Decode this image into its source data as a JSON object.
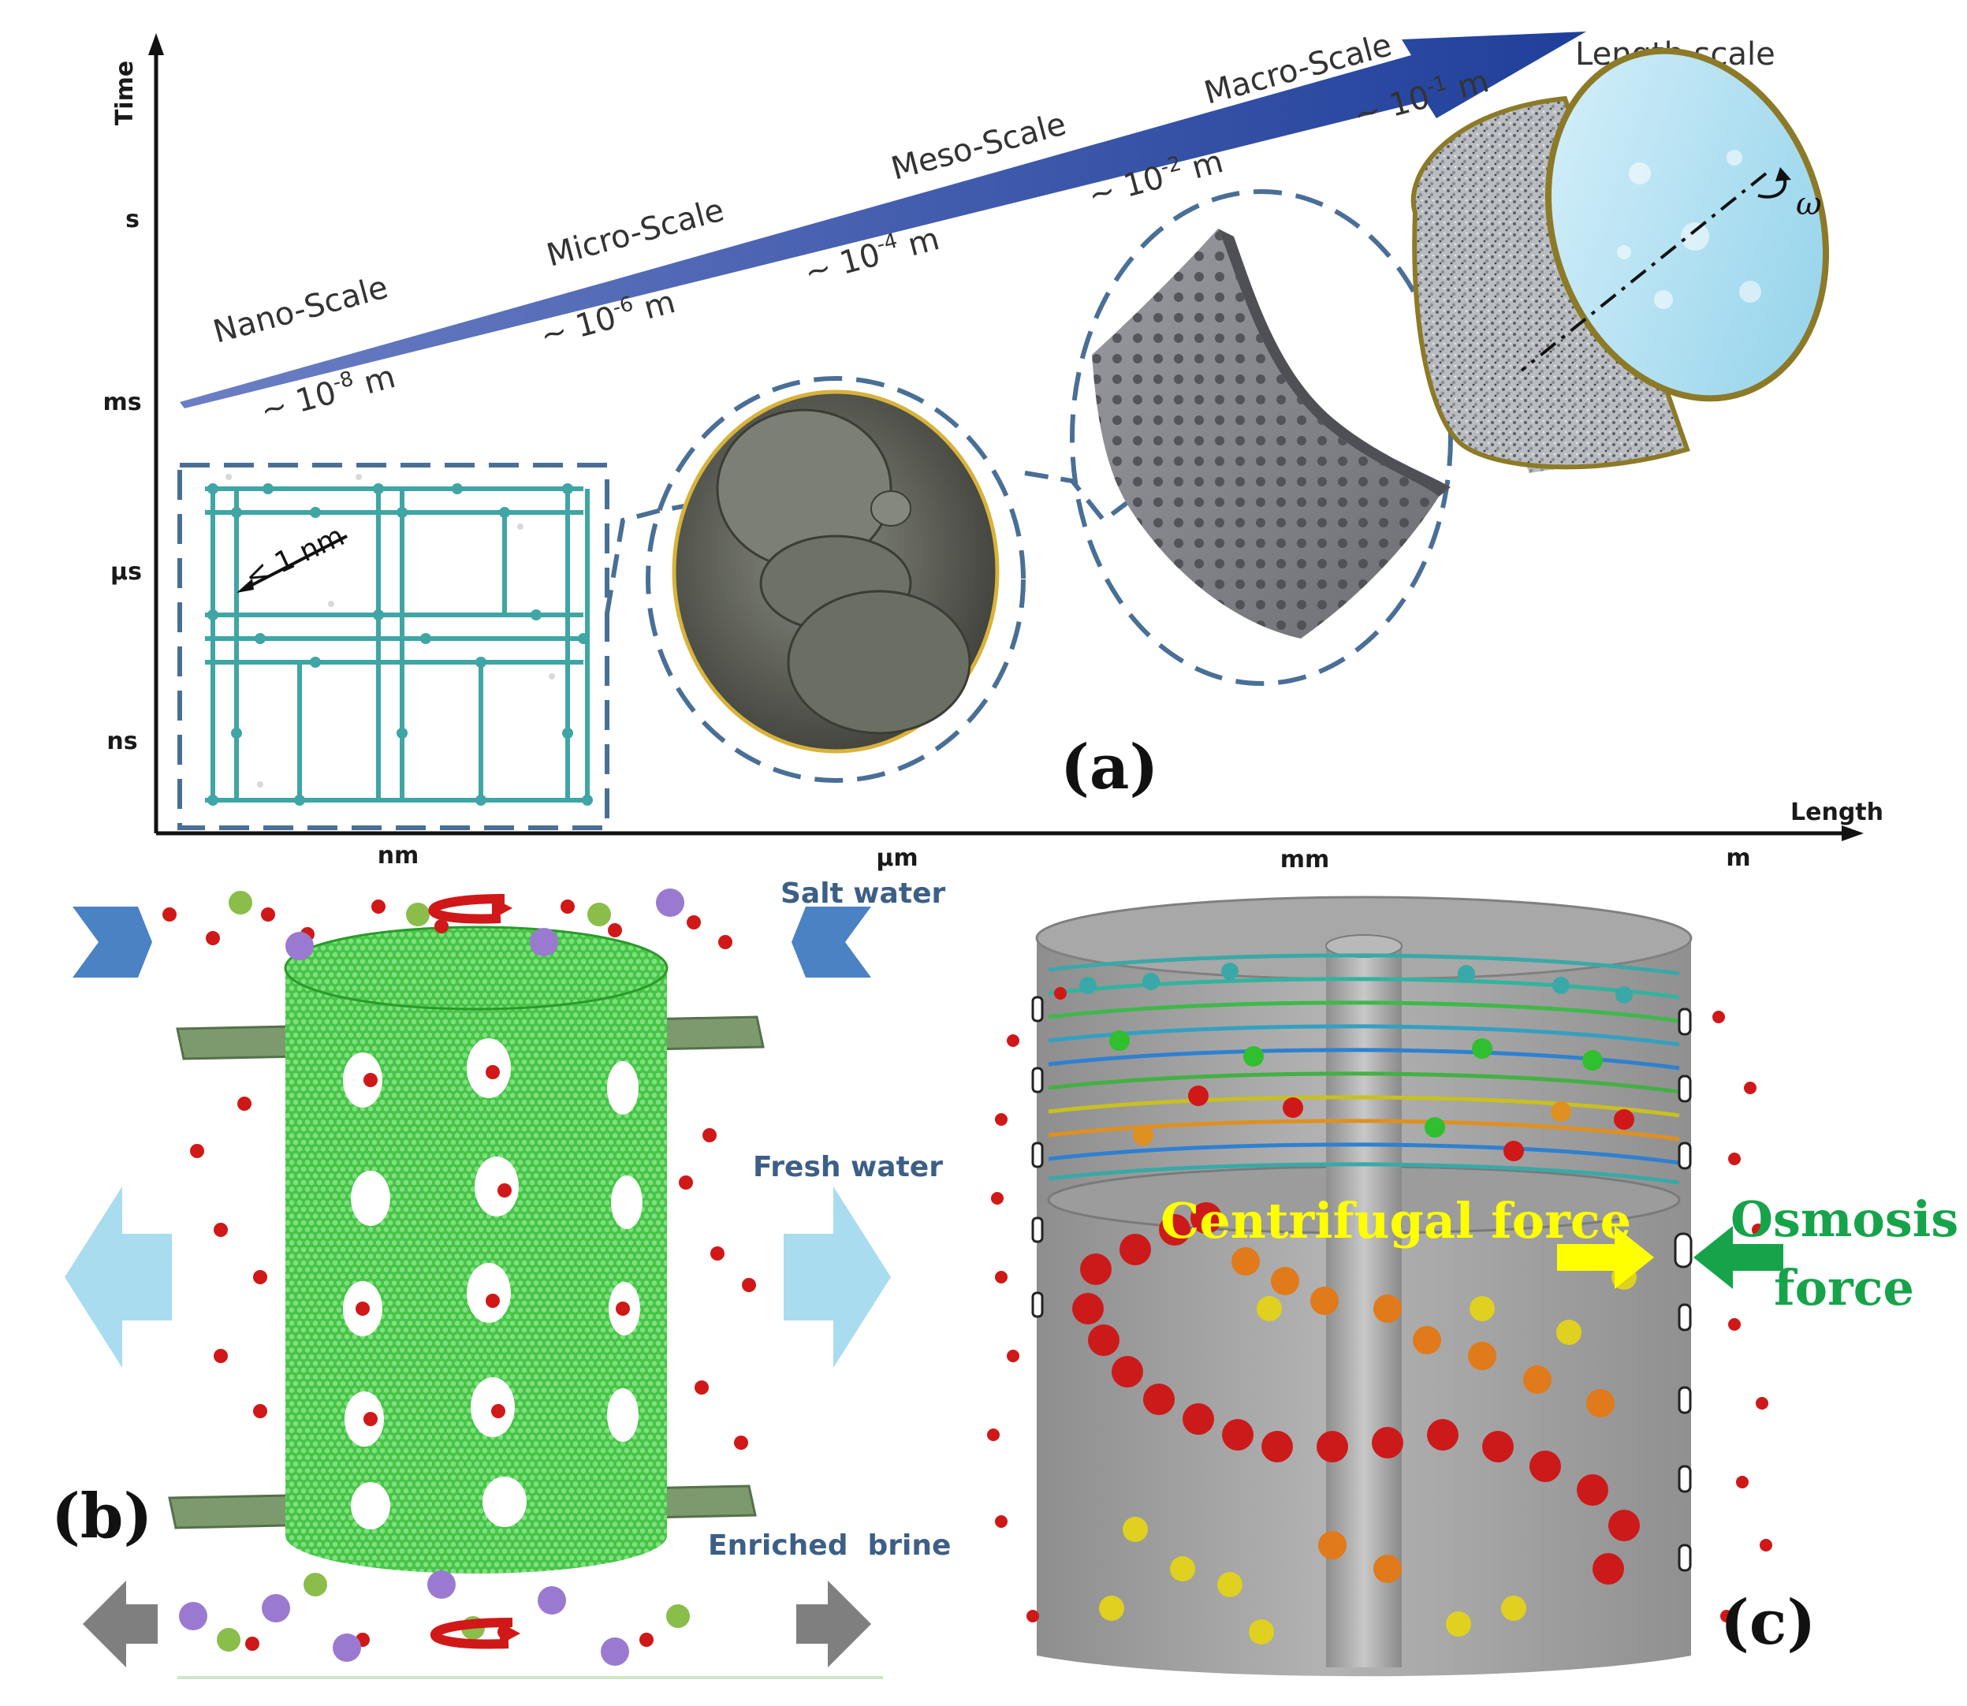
{
  "panel_a": {
    "letter": "(a)",
    "y_axis_title": "Time",
    "x_axis_title": "Length",
    "y_ticks": [
      "s",
      "ms",
      "µs",
      "ns"
    ],
    "x_ticks": [
      "nm",
      "µm",
      "mm",
      "m"
    ],
    "arrow_label": "Length scale",
    "scales": [
      "Nano-Scale",
      "Micro-Scale",
      "Meso-Scale",
      "Macro-Scale"
    ],
    "magnitudes": [
      {
        "base": "~ 10",
        "exp": "-8",
        "unit": " m"
      },
      {
        "base": "~ 10",
        "exp": "-6",
        "unit": " m"
      },
      {
        "base": "~ 10",
        "exp": "-4",
        "unit": " m"
      },
      {
        "base": "~ 10",
        "exp": "-2",
        "unit": " m"
      },
      {
        "base": "~ 10",
        "exp": "-1",
        "unit": " m"
      }
    ],
    "pore_label": "< 1 nm",
    "rotation_symbol": "ω"
  },
  "panel_b": {
    "letter": "(b)",
    "labels": [
      "Salt water",
      "Fresh water",
      "Enriched  brine"
    ]
  },
  "panel_c": {
    "letter": "(c)",
    "centrifugal_label": "Centrifugal force",
    "osmosis_label_1": "Osmosis",
    "osmosis_label_2": "force"
  },
  "colors": {
    "arrow_blue": "#1f3f9a",
    "dash_blue": "#4a6f96",
    "graphene_teal": "#3fa5a5",
    "cnt_green": "#33cc33",
    "water_red": "#d01818",
    "centrifugal_yellow": "#ffff00",
    "osmosis_green": "#16a34a",
    "light_blue_arrow": "#a9dcef",
    "gray_arrow": "#7f7f7f"
  }
}
